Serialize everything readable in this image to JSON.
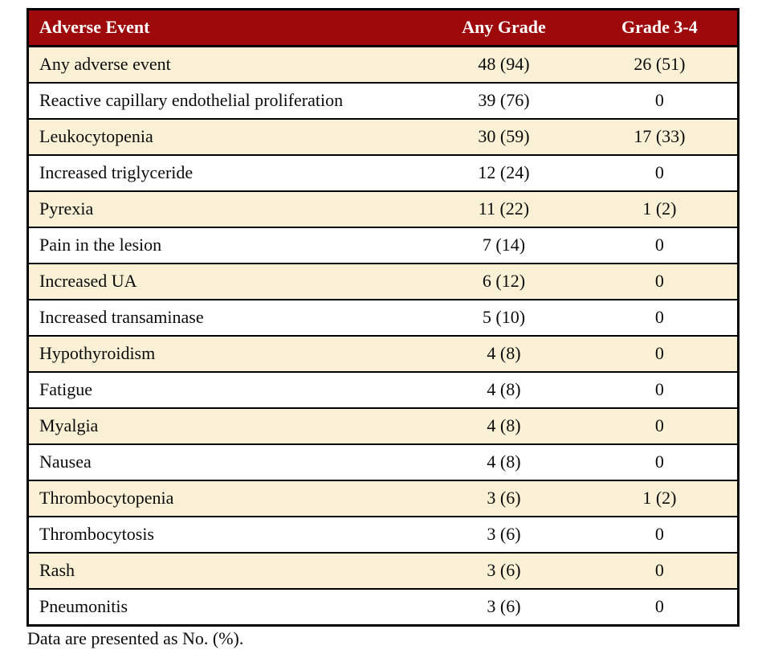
{
  "table": {
    "columns": [
      "Adverse Event",
      "Any Grade",
      "Grade 3-4"
    ],
    "rows": [
      [
        "Any adverse event",
        "48 (94)",
        "26 (51)"
      ],
      [
        "Reactive capillary endothelial proliferation",
        "39 (76)",
        "0"
      ],
      [
        "Leukocytopenia",
        "30 (59)",
        "17 (33)"
      ],
      [
        "Increased triglyceride",
        "12 (24)",
        "0"
      ],
      [
        "Pyrexia",
        "11 (22)",
        "1 (2)"
      ],
      [
        "Pain in the lesion",
        "7 (14)",
        "0"
      ],
      [
        "Increased UA",
        "6 (12)",
        "0"
      ],
      [
        "Increased transaminase",
        "5 (10)",
        "0"
      ],
      [
        "Hypothyroidism",
        "4 (8)",
        "0"
      ],
      [
        "Fatigue",
        "4 (8)",
        "0"
      ],
      [
        "Myalgia",
        "4 (8)",
        "0"
      ],
      [
        "Nausea",
        "4 (8)",
        "0"
      ],
      [
        "Thrombocytopenia",
        "3 (6)",
        "1 (2)"
      ],
      [
        "Thrombocytosis",
        "3 (6)",
        "0"
      ],
      [
        "Rash",
        "3 (6)",
        "0"
      ],
      [
        "Pneumonitis",
        "3 (6)",
        "0"
      ]
    ],
    "footnote": "Data are presented as No. (%)."
  },
  "colors": {
    "header_bg": "#9e0a0c",
    "header_text": "#ffffff",
    "alt_row_bg": "#faf0d6",
    "border": "#000000"
  }
}
